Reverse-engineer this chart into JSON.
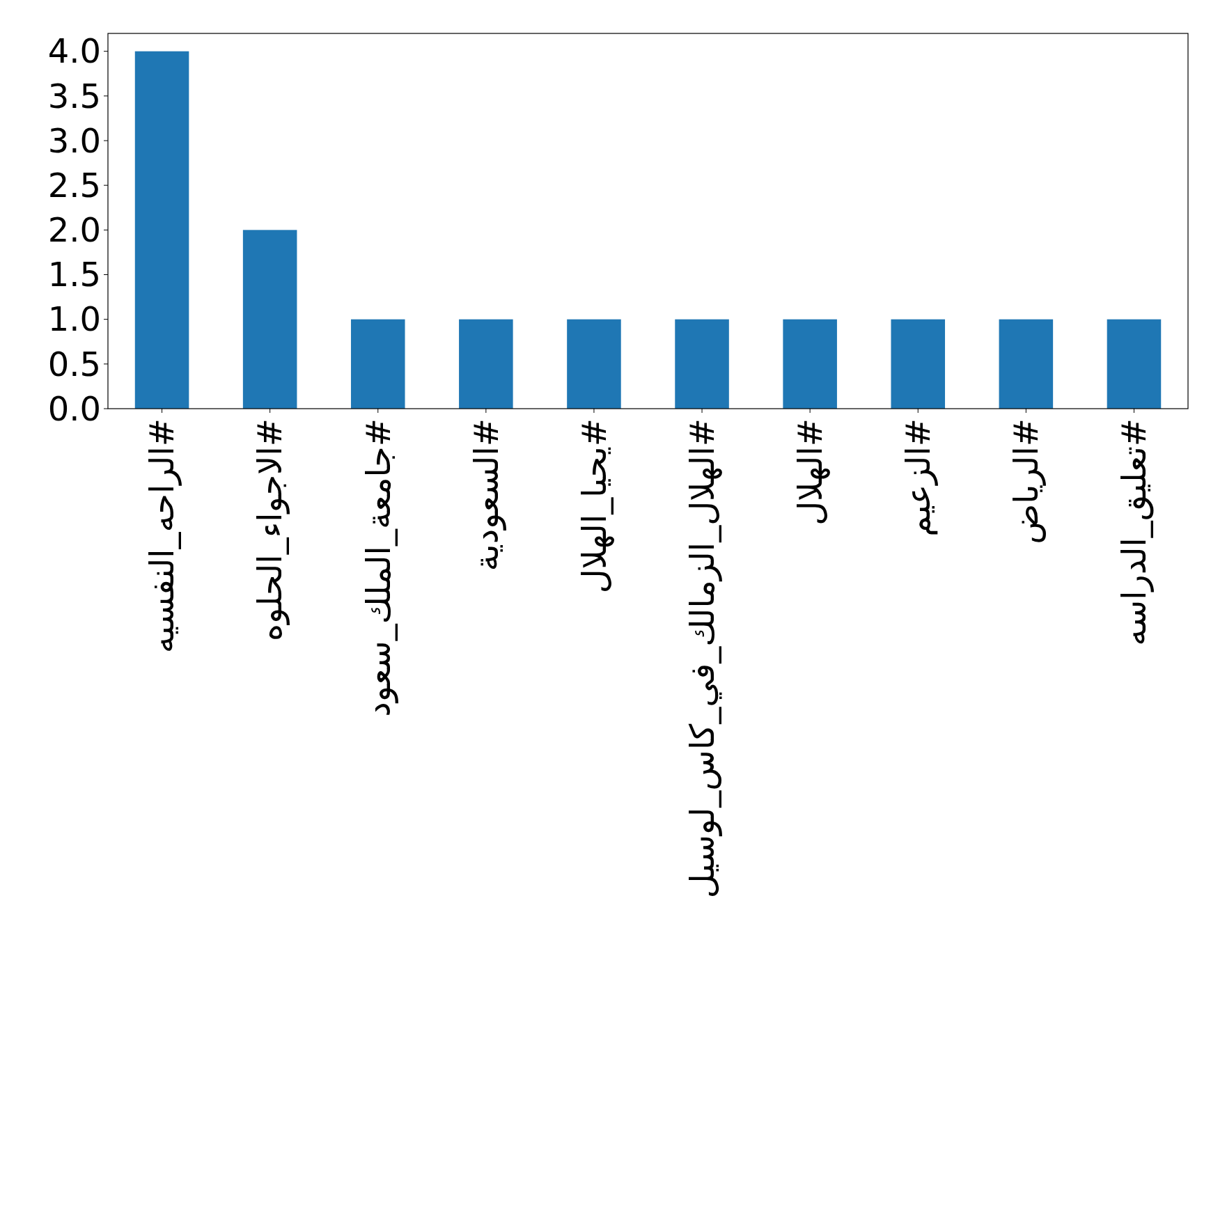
{
  "chart_data": {
    "type": "bar",
    "categories": [
      "#الراحه_النفسيه",
      "#الاجواء_الحلوه",
      "#جامعة_الملك_سعود",
      "#السعودية",
      "#يحيا_الهلال",
      "#الهلال_الزمالك_في_كاس_لوسيل",
      "#الهلال",
      "#الزعيم",
      "#الرياض",
      "#تعليق_الدراسه"
    ],
    "values": [
      4,
      2,
      1,
      1,
      1,
      1,
      1,
      1,
      1,
      1
    ],
    "color": "#1f77b4",
    "ylim": [
      0,
      4.2
    ],
    "yticks": [
      {
        "value": 0,
        "label": "0.0"
      },
      {
        "value": 0.5,
        "label": "0.5"
      },
      {
        "value": 1,
        "label": "1.0"
      },
      {
        "value": 1.5,
        "label": "1.5"
      },
      {
        "value": 2,
        "label": "2.0"
      },
      {
        "value": 2.5,
        "label": "2.5"
      },
      {
        "value": 3,
        "label": "3.0"
      },
      {
        "value": 3.5,
        "label": "3.5"
      },
      {
        "value": 4,
        "label": "4.0"
      }
    ],
    "grid": false
  }
}
